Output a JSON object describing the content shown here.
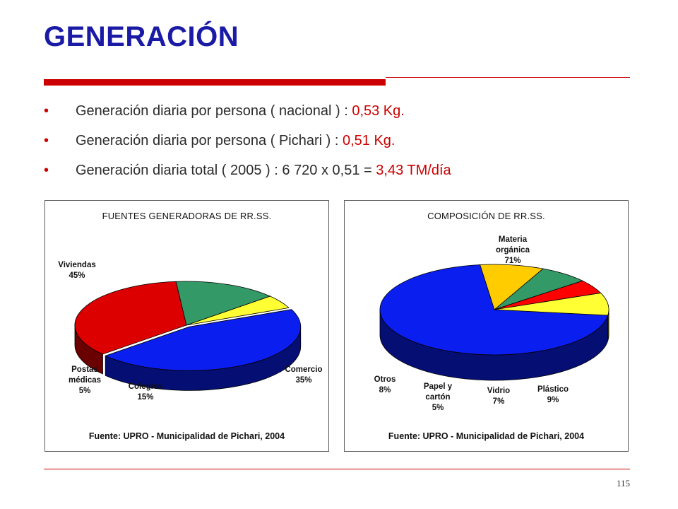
{
  "title": "GENERACIÓN",
  "bullets": [
    {
      "text": "Generación diaria por persona ( nacional ) : ",
      "highlight": "0,53 Kg."
    },
    {
      "text": "Generación diaria por persona ( Pichari ) : ",
      "highlight": "0,51 Kg."
    },
    {
      "text": "Generación diaria total ( 2005 ) : 6 720 x 0,51 = ",
      "highlight": "3,43 TM/día"
    }
  ],
  "bullet_symbol": "•",
  "page_number": "115",
  "colors": {
    "title": "#1a1aa6",
    "accent": "#cc0000"
  },
  "chart_data": [
    {
      "type": "pie",
      "title": "FUENTES GENERADORAS DE RR.SS.",
      "source": "Fuente: UPRO - Municipalidad de Pichari, 2004",
      "categories": [
        "Viviendas",
        "Comercio",
        "Colegios",
        "Postas médicas"
      ],
      "values": [
        45,
        35,
        15,
        5
      ],
      "labels": [
        {
          "lines": [
            "Viviendas",
            "45%"
          ]
        },
        {
          "lines": [
            "Comercio",
            "35%"
          ]
        },
        {
          "lines": [
            "Colegios",
            "15%"
          ]
        },
        {
          "lines": [
            "Postas",
            "médicas",
            "5%"
          ]
        }
      ],
      "colors": [
        "#0a1ef0",
        "#dd0000",
        "#339966",
        "#ffff33"
      ]
    },
    {
      "type": "pie",
      "title": "COMPOSICIÓN DE RR.SS.",
      "source": "Fuente: UPRO - Municipalidad de Pichari, 2004",
      "categories": [
        "Materia orgánica",
        "Plástico",
        "Vidrio",
        "Papel y cartón",
        "Otros"
      ],
      "values": [
        71,
        9,
        7,
        5,
        8
      ],
      "labels": [
        {
          "lines": [
            "Materia",
            "orgánica",
            "71%"
          ]
        },
        {
          "lines": [
            "Plástico",
            "9%"
          ]
        },
        {
          "lines": [
            "Vidrio",
            "7%"
          ]
        },
        {
          "lines": [
            "Papel y",
            "cartón",
            "5%"
          ]
        },
        {
          "lines": [
            "Otros",
            "8%"
          ]
        }
      ],
      "colors": [
        "#0a1ef0",
        "#ffcc00",
        "#339966",
        "#ff0000",
        "#ffff33"
      ]
    }
  ]
}
